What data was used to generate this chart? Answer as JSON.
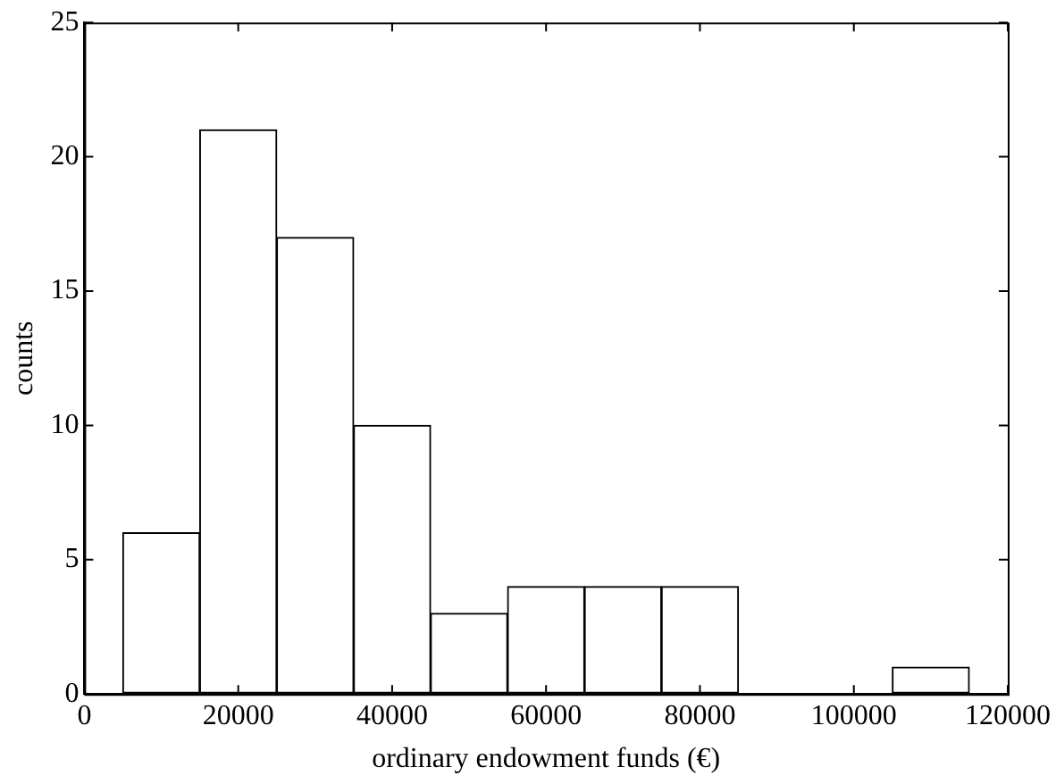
{
  "chart_data": {
    "type": "histogram",
    "xlabel": "ordinary endowment funds (€)",
    "ylabel": "counts",
    "bins": [
      5000,
      15000,
      25000,
      35000,
      45000,
      55000,
      65000,
      75000,
      85000,
      95000,
      105000,
      115000
    ],
    "values": [
      6,
      21,
      17,
      10,
      3,
      4,
      4,
      4,
      0,
      0,
      1
    ],
    "color": "#ffffff",
    "xlim": [
      0,
      120000
    ],
    "xticks": [
      0,
      20000,
      40000,
      60000,
      80000,
      100000,
      120000
    ],
    "ylim": [
      0,
      25
    ],
    "yticks": [
      0,
      5,
      10,
      15,
      20,
      25
    ],
    "grid": false,
    "legend": false
  }
}
